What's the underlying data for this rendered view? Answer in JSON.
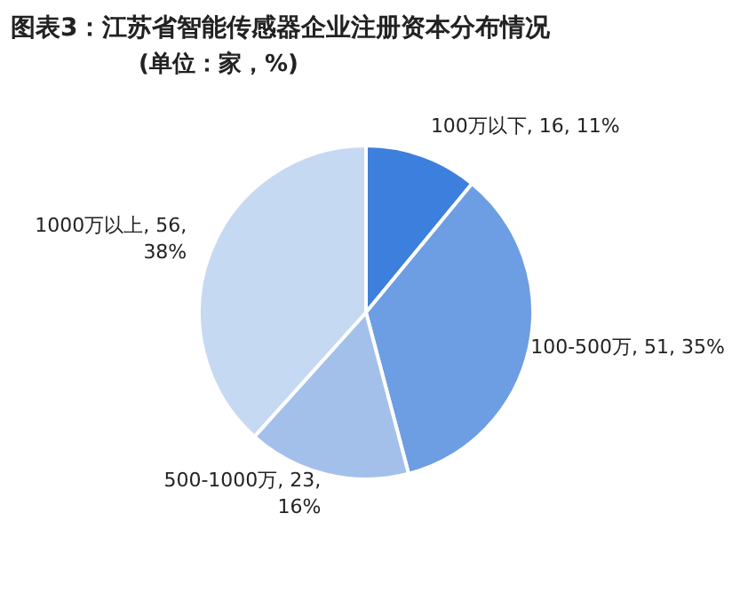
{
  "chart_data": {
    "type": "pie",
    "title": "图表3：江苏省智能传感器企业注册资本分布情况",
    "subtitle": "(单位：家，%)",
    "categories": [
      "100万以下",
      "100-500万",
      "500-1000万",
      "1000万以上"
    ],
    "values": [
      16,
      51,
      23,
      56
    ],
    "value_labels": [
      "16, 11%",
      "51, 35%",
      "23, 16%",
      "56, 38%"
    ],
    "colors": [
      "#3d7fdc",
      "#6d9de2",
      "#a3c0ea",
      "#c6d9f2"
    ]
  }
}
